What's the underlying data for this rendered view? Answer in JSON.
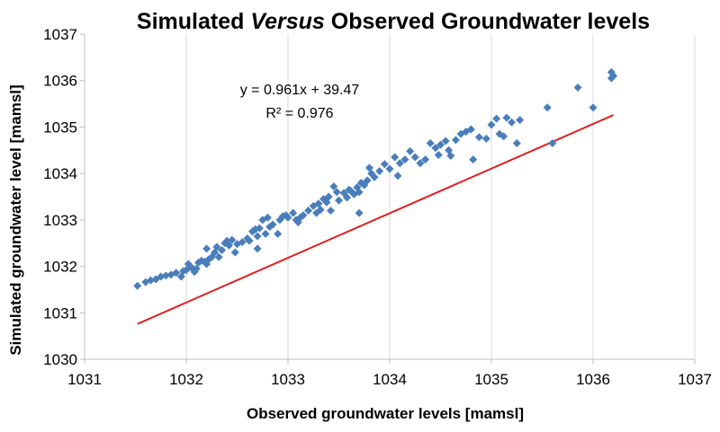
{
  "chart_data": {
    "type": "scatter",
    "title_parts": [
      "Simulated ",
      "Versus",
      " Observed Groundwater levels"
    ],
    "xlabel": "Observed groundwater levels [mamsl]",
    "ylabel": "Simulated groundwater level [mamsl]",
    "xlim": [
      1031,
      1037
    ],
    "ylim": [
      1030,
      1037
    ],
    "xticks": [
      "1031",
      "1032",
      "1033",
      "1034",
      "1035",
      "1036",
      "1037"
    ],
    "yticks": [
      "1030",
      "1031",
      "1032",
      "1033",
      "1034",
      "1035",
      "1036",
      "1037"
    ],
    "grid": "vertical-major",
    "legend": "none",
    "marker_color": "#4a7ebb",
    "trendline_color": "#e02020",
    "trendline": {
      "equation": "y = 0.961x + 39.47",
      "r2": "R² = 0.976",
      "slope": 0.961,
      "intercept": 39.47
    },
    "points": [
      [
        1031.52,
        1031.58
      ],
      [
        1031.6,
        1031.66
      ],
      [
        1031.65,
        1031.7
      ],
      [
        1031.7,
        1031.72
      ],
      [
        1031.75,
        1031.78
      ],
      [
        1031.8,
        1031.8
      ],
      [
        1031.85,
        1031.82
      ],
      [
        1031.9,
        1031.86
      ],
      [
        1031.95,
        1031.78
      ],
      [
        1031.97,
        1031.9
      ],
      [
        1032.0,
        1031.92
      ],
      [
        1032.02,
        1032.05
      ],
      [
        1032.05,
        1031.98
      ],
      [
        1032.08,
        1031.88
      ],
      [
        1032.1,
        1031.95
      ],
      [
        1032.12,
        1032.08
      ],
      [
        1032.15,
        1032.12
      ],
      [
        1032.18,
        1032.1
      ],
      [
        1032.2,
        1032.05
      ],
      [
        1032.2,
        1032.38
      ],
      [
        1032.22,
        1032.15
      ],
      [
        1032.25,
        1032.2
      ],
      [
        1032.28,
        1032.3
      ],
      [
        1032.3,
        1032.42
      ],
      [
        1032.32,
        1032.2
      ],
      [
        1032.35,
        1032.35
      ],
      [
        1032.38,
        1032.5
      ],
      [
        1032.4,
        1032.55
      ],
      [
        1032.42,
        1032.45
      ],
      [
        1032.45,
        1032.57
      ],
      [
        1032.48,
        1032.3
      ],
      [
        1032.5,
        1032.48
      ],
      [
        1032.55,
        1032.52
      ],
      [
        1032.6,
        1032.6
      ],
      [
        1032.62,
        1032.55
      ],
      [
        1032.65,
        1032.75
      ],
      [
        1032.68,
        1032.8
      ],
      [
        1032.7,
        1032.65
      ],
      [
        1032.7,
        1032.38
      ],
      [
        1032.72,
        1032.82
      ],
      [
        1032.75,
        1033.0
      ],
      [
        1032.78,
        1032.7
      ],
      [
        1032.8,
        1033.05
      ],
      [
        1032.82,
        1032.85
      ],
      [
        1032.85,
        1032.9
      ],
      [
        1032.9,
        1032.7
      ],
      [
        1032.92,
        1033.0
      ],
      [
        1032.95,
        1033.08
      ],
      [
        1032.98,
        1033.1
      ],
      [
        1033.0,
        1033.05
      ],
      [
        1033.05,
        1033.15
      ],
      [
        1033.08,
        1033.0
      ],
      [
        1033.1,
        1032.95
      ],
      [
        1033.12,
        1033.05
      ],
      [
        1033.15,
        1033.1
      ],
      [
        1033.2,
        1033.2
      ],
      [
        1033.25,
        1033.3
      ],
      [
        1033.28,
        1033.15
      ],
      [
        1033.3,
        1033.35
      ],
      [
        1033.32,
        1033.22
      ],
      [
        1033.35,
        1033.45
      ],
      [
        1033.38,
        1033.38
      ],
      [
        1033.4,
        1033.5
      ],
      [
        1033.42,
        1033.2
      ],
      [
        1033.45,
        1033.72
      ],
      [
        1033.48,
        1033.6
      ],
      [
        1033.5,
        1033.42
      ],
      [
        1033.55,
        1033.58
      ],
      [
        1033.58,
        1033.48
      ],
      [
        1033.6,
        1033.65
      ],
      [
        1033.62,
        1033.62
      ],
      [
        1033.65,
        1033.55
      ],
      [
        1033.68,
        1033.7
      ],
      [
        1033.7,
        1033.6
      ],
      [
        1033.7,
        1033.15
      ],
      [
        1033.72,
        1033.8
      ],
      [
        1033.75,
        1033.75
      ],
      [
        1033.78,
        1033.85
      ],
      [
        1033.8,
        1034.12
      ],
      [
        1033.82,
        1034.0
      ],
      [
        1033.85,
        1033.92
      ],
      [
        1033.9,
        1034.05
      ],
      [
        1033.95,
        1034.2
      ],
      [
        1034.0,
        1034.1
      ],
      [
        1034.05,
        1034.35
      ],
      [
        1034.08,
        1033.95
      ],
      [
        1034.1,
        1034.22
      ],
      [
        1034.15,
        1034.3
      ],
      [
        1034.2,
        1034.48
      ],
      [
        1034.25,
        1034.35
      ],
      [
        1034.3,
        1034.22
      ],
      [
        1034.35,
        1034.3
      ],
      [
        1034.4,
        1034.65
      ],
      [
        1034.45,
        1034.55
      ],
      [
        1034.48,
        1034.4
      ],
      [
        1034.5,
        1034.62
      ],
      [
        1034.55,
        1034.7
      ],
      [
        1034.58,
        1034.5
      ],
      [
        1034.6,
        1034.38
      ],
      [
        1034.65,
        1034.72
      ],
      [
        1034.7,
        1034.85
      ],
      [
        1034.75,
        1034.9
      ],
      [
        1034.8,
        1034.95
      ],
      [
        1034.82,
        1034.3
      ],
      [
        1034.88,
        1034.78
      ],
      [
        1034.95,
        1034.75
      ],
      [
        1035.0,
        1035.05
      ],
      [
        1035.05,
        1035.18
      ],
      [
        1035.08,
        1034.85
      ],
      [
        1035.12,
        1034.8
      ],
      [
        1035.15,
        1035.2
      ],
      [
        1035.2,
        1035.1
      ],
      [
        1035.25,
        1034.65
      ],
      [
        1035.28,
        1035.15
      ],
      [
        1035.55,
        1035.42
      ],
      [
        1035.6,
        1034.65
      ],
      [
        1035.85,
        1035.85
      ],
      [
        1036.0,
        1035.42
      ],
      [
        1036.18,
        1036.05
      ],
      [
        1036.18,
        1036.18
      ],
      [
        1036.2,
        1036.1
      ]
    ]
  }
}
